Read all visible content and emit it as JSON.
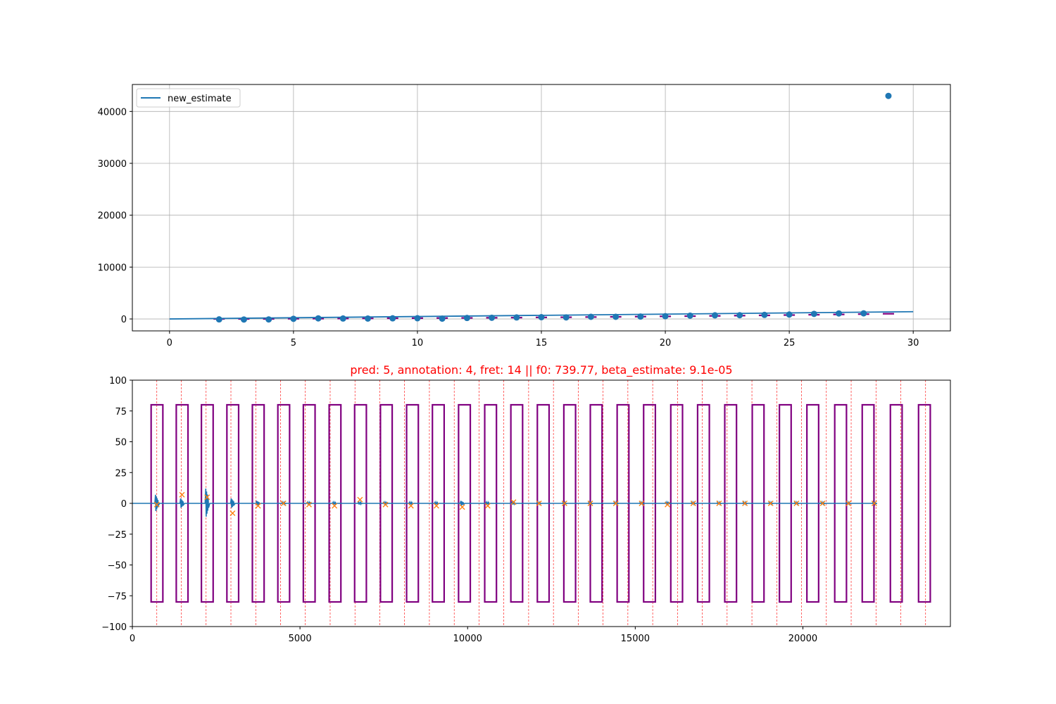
{
  "chart_data": [
    {
      "type": "scatter",
      "legend": {
        "entries": [
          "new_estimate"
        ],
        "placement": "upper left"
      },
      "grid": true,
      "xlim": [
        -1.5,
        31.5
      ],
      "ylim": [
        -2300,
        45200
      ],
      "xticks": [
        0,
        5,
        10,
        15,
        20,
        25,
        30
      ],
      "yticks": [
        0,
        10000,
        20000,
        30000,
        40000
      ],
      "line": {
        "name": "new_estimate",
        "x": [
          0,
          30
        ],
        "y": [
          0,
          1400
        ]
      },
      "points": {
        "x": [
          2,
          3,
          4,
          5,
          6,
          7,
          8,
          9,
          10,
          11,
          12,
          13,
          14,
          15,
          16,
          17,
          18,
          19,
          20,
          21,
          22,
          23,
          24,
          25,
          26,
          27,
          28,
          29
        ],
        "y": [
          -80,
          -110,
          -90,
          30,
          110,
          90,
          80,
          120,
          140,
          60,
          190,
          230,
          290,
          340,
          300,
          420,
          420,
          460,
          530,
          640,
          700,
          720,
          780,
          850,
          980,
          1060,
          1080,
          43000
        ]
      },
      "bands": {
        "x": [
          2,
          3,
          4,
          5,
          6,
          7,
          8,
          9,
          10,
          11,
          12,
          13,
          14,
          15,
          16,
          17,
          18,
          19,
          20,
          21,
          22,
          23,
          24,
          25,
          26,
          27,
          28,
          29
        ],
        "center": [
          0,
          0,
          0,
          40,
          60,
          80,
          110,
          130,
          150,
          170,
          200,
          230,
          260,
          300,
          330,
          370,
          410,
          450,
          500,
          540,
          590,
          640,
          690,
          750,
          810,
          870,
          930,
          1000
        ],
        "half_width": [
          150,
          150,
          150,
          150,
          150,
          150,
          150,
          150,
          150,
          150,
          150,
          150,
          150,
          150,
          150,
          150,
          150,
          150,
          150,
          150,
          150,
          150,
          150,
          150,
          150,
          150,
          150,
          150
        ]
      },
      "colors": {
        "line": "#1f77b4",
        "points": "#1f77b4",
        "bands": "#800080"
      }
    },
    {
      "type": "line",
      "title": "pred: 5, annotation: 4, fret: 14 || f0: 739.77, beta_estimate: 9.1e-05",
      "grid": false,
      "xlim": [
        0,
        24400
      ],
      "ylim": [
        -100,
        100
      ],
      "xticks": [
        0,
        5000,
        10000,
        15000,
        20000
      ],
      "yticks": [
        -100,
        -75,
        -50,
        -25,
        0,
        25,
        50,
        75,
        100
      ],
      "ytick_labels": [
        "−100",
        "−75",
        "−50",
        "−25",
        "0",
        "25",
        "50",
        "75",
        "100"
      ],
      "signal": {
        "x_end": 22100
      },
      "vlines": [
        730,
        1460,
        2200,
        2940,
        3680,
        4420,
        5160,
        5900,
        6640,
        7380,
        8120,
        8860,
        9600,
        10340,
        11080,
        11820,
        12560,
        13300,
        14040,
        14780,
        15520,
        16260,
        17000,
        17740,
        18480,
        19220,
        19960,
        20700,
        21440,
        22180,
        22920,
        23660
      ],
      "boxes": [
        {
          "x0": 560,
          "x1": 910
        },
        {
          "x0": 1310,
          "x1": 1660
        },
        {
          "x0": 2060,
          "x1": 2410
        },
        {
          "x0": 2820,
          "x1": 3170
        },
        {
          "x0": 3580,
          "x1": 3930
        },
        {
          "x0": 4340,
          "x1": 4690
        },
        {
          "x0": 5100,
          "x1": 5450
        },
        {
          "x0": 5870,
          "x1": 6220
        },
        {
          "x0": 6630,
          "x1": 6980
        },
        {
          "x0": 7400,
          "x1": 7750
        },
        {
          "x0": 8180,
          "x1": 8530
        },
        {
          "x0": 8950,
          "x1": 9300
        },
        {
          "x0": 9730,
          "x1": 10080
        },
        {
          "x0": 10510,
          "x1": 10860
        },
        {
          "x0": 11290,
          "x1": 11640
        },
        {
          "x0": 12080,
          "x1": 12430
        },
        {
          "x0": 12870,
          "x1": 13220
        },
        {
          "x0": 13660,
          "x1": 14010
        },
        {
          "x0": 14460,
          "x1": 14810
        },
        {
          "x0": 15250,
          "x1": 15600
        },
        {
          "x0": 16060,
          "x1": 16410
        },
        {
          "x0": 16860,
          "x1": 17210
        },
        {
          "x0": 17670,
          "x1": 18020
        },
        {
          "x0": 18490,
          "x1": 18840
        },
        {
          "x0": 19300,
          "x1": 19650
        },
        {
          "x0": 20120,
          "x1": 20470
        },
        {
          "x0": 20950,
          "x1": 21300
        },
        {
          "x0": 21770,
          "x1": 22120
        },
        {
          "x0": 22610,
          "x1": 22960
        },
        {
          "x0": 23450,
          "x1": 23800
        }
      ],
      "box_ylim": [
        -80,
        80
      ],
      "markers": {
        "x": [
          730,
          1480,
          2230,
          2990,
          3750,
          4510,
          5270,
          6030,
          6790,
          7550,
          8310,
          9070,
          9840,
          10600,
          11370,
          12130,
          12890,
          13660,
          14420,
          15190,
          15960,
          16730,
          17500,
          18270,
          19040,
          19810,
          20590,
          21360,
          22130
        ],
        "y": [
          -1,
          7,
          5,
          -8,
          -2,
          0,
          -1,
          -2,
          3,
          -1,
          -2,
          -2,
          -3,
          -2,
          1,
          0,
          0,
          0,
          0,
          0,
          -1,
          0,
          0,
          0,
          0,
          0,
          0,
          0,
          0
        ]
      },
      "colors": {
        "signal": "#1f77b4",
        "markers": "#ff7f0e",
        "boxes": "#800080",
        "vlines": "#ff0000",
        "title": "#ff0000"
      }
    }
  ]
}
